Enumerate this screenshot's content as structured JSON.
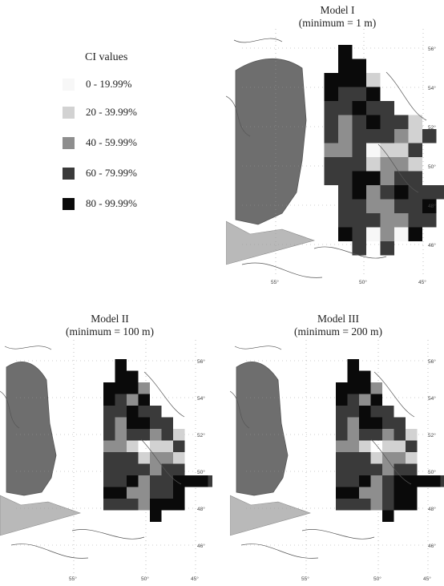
{
  "legend": {
    "title": "CI values",
    "classes": [
      {
        "label": "0 - 19.99%",
        "color": "#f7f7f7"
      },
      {
        "label": "20 - 39.99%",
        "color": "#d2d2d2"
      },
      {
        "label": "40 - 59.99%",
        "color": "#8e8e8e"
      },
      {
        "label": "60 - 79.99%",
        "color": "#3a3a3a"
      },
      {
        "label": "80 - 99.99%",
        "color": "#0a0a0a"
      }
    ]
  },
  "colors": {
    "land": "#6e6e6e",
    "coast": "#555555",
    "grid": "#9a9a9a"
  },
  "maps": [
    {
      "id": "model-1",
      "title": "Model I",
      "subtitle": "(minimum = 1 m)",
      "lat_labels": [
        "56°",
        "54°",
        "52°",
        "50°",
        "48°",
        "46°"
      ],
      "lon_labels": [
        "55°",
        "50°",
        "45°"
      ],
      "grid": [
        "....4.........",
        "....44........",
        "...4441.......",
        "...4334.......",
        "...33433......",
        "...3234331....",
        "...32333213...",
        "...2230113....",
        "...3331221....",
        "...3344233....",
        "....342343333.",
        "....3322334.44",
        "....3332233...",
        "....430204....",
        ".....3.3......"
      ]
    },
    {
      "id": "model-2",
      "title": "Model II",
      "subtitle": "(minimum = 100 m)",
      "lat_labels": [
        "56°",
        "54°",
        "52°",
        "50°",
        "48°",
        "46°"
      ],
      "lon_labels": [
        "55°",
        "50°",
        "45°"
      ],
      "grid": [
        ".......4.......",
        ".......44......",
        "......4442.....",
        "......4324.....",
        "......33433....",
        "......324433...",
        "......3233231..",
        "......221.113..",
        "......3331221..",
        "......3333233..",
        "......3342334443",
        "......4422334..",
        "......3332444..",
        "..........4....",
        "..............."
      ]
    },
    {
      "id": "model-3",
      "title": "Model III",
      "subtitle": "(minimum = 200 m)",
      "lat_labels": [
        "56°",
        "54°",
        "52°",
        "50°",
        "48°",
        "46°"
      ],
      "lon_labels": [
        "55°",
        "50°",
        "45°"
      ],
      "grid": [
        ".......4.......",
        ".......44......",
        "......4442.....",
        "......4324.....",
        "......33433....",
        "......324433...",
        "......3233231..",
        "......221.113..",
        "......3331221..",
        "......3333233..",
        "......3342344443",
        "......4422344..",
        "......3332344..",
        "..........4....",
        "..............."
      ]
    }
  ]
}
